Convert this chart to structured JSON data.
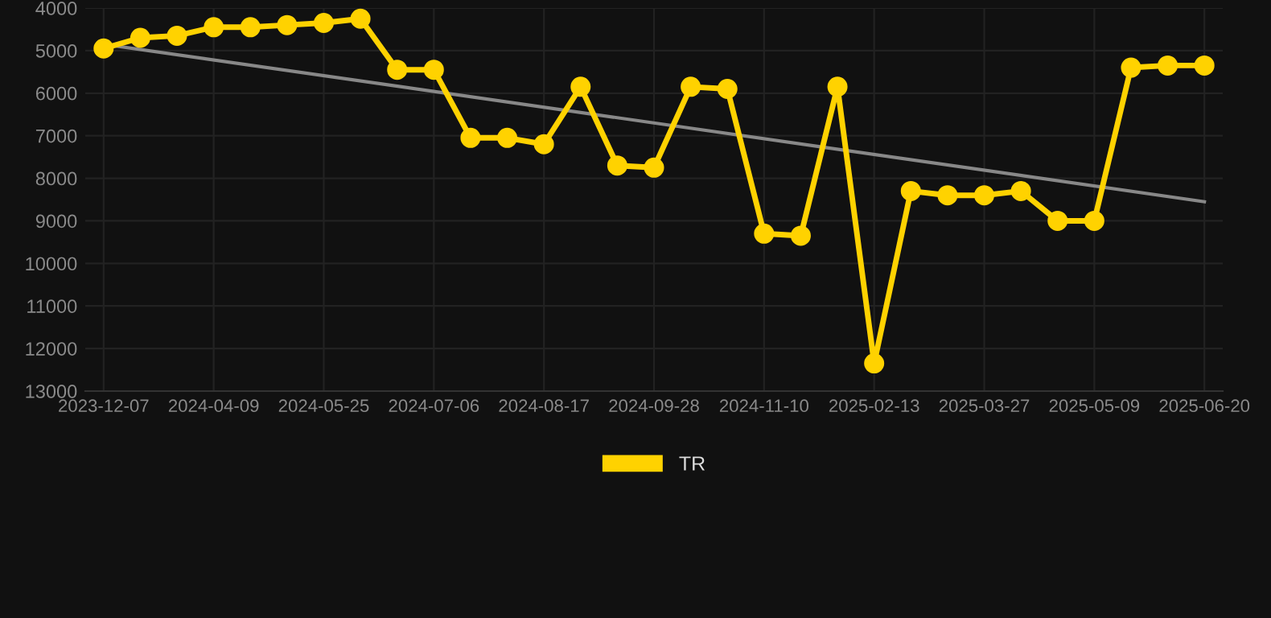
{
  "chart_data": {
    "type": "line",
    "categories": [
      "2023-12-07",
      null,
      null,
      "2024-04-09",
      null,
      null,
      "2024-05-25",
      null,
      null,
      "2024-07-06",
      null,
      null,
      "2024-08-17",
      null,
      null,
      "2024-09-28",
      null,
      null,
      "2024-11-10",
      null,
      null,
      "2025-02-13",
      null,
      null,
      "2025-03-27",
      null,
      null,
      "2025-05-09",
      null,
      null,
      "2025-06-20"
    ],
    "series": [
      {
        "name": "TR",
        "color": "#ffd200",
        "marker": "circle",
        "values": [
          4950,
          4700,
          4650,
          4450,
          4450,
          4400,
          4350,
          4250,
          5450,
          5450,
          7050,
          7050,
          7200,
          5850,
          7700,
          7750,
          5850,
          5900,
          9300,
          9350,
          5850,
          12350,
          8300,
          8400,
          8400,
          8300,
          9000,
          9000,
          5400,
          5350,
          5350
        ]
      },
      {
        "type": "line",
        "color": "#888888",
        "marker": "none",
        "values": [
          4850,
          null,
          null,
          null,
          null,
          null,
          null,
          null,
          null,
          null,
          null,
          null,
          null,
          null,
          null,
          null,
          null,
          null,
          null,
          null,
          null,
          null,
          null,
          null,
          null,
          null,
          null,
          null,
          null,
          null,
          8550
        ]
      }
    ],
    "ylim": [
      13000,
      4000
    ],
    "yticks": [
      4000,
      5000,
      6000,
      7000,
      8000,
      9000,
      10000,
      11000,
      12000,
      13000
    ],
    "grid": true,
    "legend": "bottom",
    "line_style": "solid"
  }
}
